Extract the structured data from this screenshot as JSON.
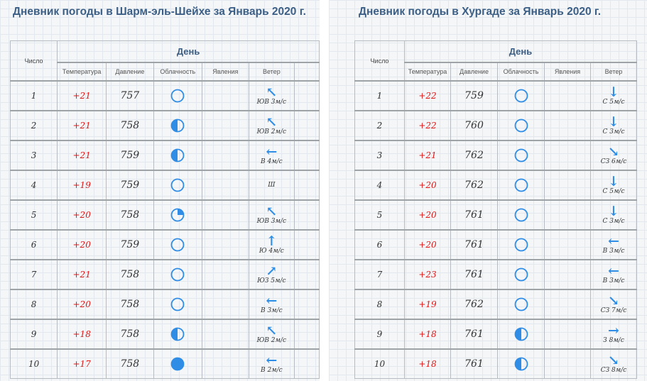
{
  "panels": [
    {
      "title": "Дневник погоды в Шарм-эль-Шейхе за Январь 2020 г.",
      "day_header": "День",
      "headers": {
        "num": "Число",
        "temp": "Температура",
        "press": "Давление",
        "cloud": "Облачность",
        "phen": "Явления",
        "wind": "Ветер"
      },
      "rows": [
        {
          "num": "1",
          "temp": "+21",
          "press": "757",
          "cloud": "clear",
          "cloud_icon": "clear-circle-icon",
          "wind": "ЮВ 3м/с",
          "wind_dir": "nw",
          "wind_icon": "arrow-up-left-icon"
        },
        {
          "num": "2",
          "temp": "+21",
          "press": "758",
          "cloud": "half",
          "cloud_icon": "half-cloud-icon",
          "wind": "ЮВ 2м/с",
          "wind_dir": "nw",
          "wind_icon": "arrow-up-left-icon"
        },
        {
          "num": "3",
          "temp": "+21",
          "press": "759",
          "cloud": "half",
          "cloud_icon": "half-cloud-icon",
          "wind": "В 4м/с",
          "wind_dir": "w",
          "wind_icon": "arrow-left-icon"
        },
        {
          "num": "4",
          "temp": "+19",
          "press": "759",
          "cloud": "clear",
          "cloud_icon": "clear-circle-icon",
          "wind": "Ш",
          "wind_dir": "",
          "wind_icon": ""
        },
        {
          "num": "5",
          "temp": "+20",
          "press": "758",
          "cloud": "quarter",
          "cloud_icon": "quarter-cloud-icon",
          "wind": "ЮВ 3м/с",
          "wind_dir": "nw",
          "wind_icon": "arrow-up-left-icon"
        },
        {
          "num": "6",
          "temp": "+20",
          "press": "759",
          "cloud": "clear",
          "cloud_icon": "clear-circle-icon",
          "wind": "Ю 4м/с",
          "wind_dir": "n",
          "wind_icon": "arrow-up-icon"
        },
        {
          "num": "7",
          "temp": "+21",
          "press": "758",
          "cloud": "clear",
          "cloud_icon": "clear-circle-icon",
          "wind": "ЮЗ 5м/с",
          "wind_dir": "ne",
          "wind_icon": "arrow-up-right-icon"
        },
        {
          "num": "8",
          "temp": "+20",
          "press": "758",
          "cloud": "clear",
          "cloud_icon": "clear-circle-icon",
          "wind": "В 3м/с",
          "wind_dir": "w",
          "wind_icon": "arrow-left-icon"
        },
        {
          "num": "9",
          "temp": "+18",
          "press": "758",
          "cloud": "half",
          "cloud_icon": "half-cloud-icon",
          "wind": "ЮВ 2м/с",
          "wind_dir": "nw",
          "wind_icon": "arrow-up-left-icon"
        },
        {
          "num": "10",
          "temp": "+17",
          "press": "758",
          "cloud": "full",
          "cloud_icon": "overcast-circle-icon",
          "wind": "В 2м/с",
          "wind_dir": "w",
          "wind_icon": "arrow-left-icon"
        }
      ]
    },
    {
      "title": "Дневник погоды в Хургаде за Январь 2020 г.",
      "day_header": "День",
      "headers": {
        "num": "Число",
        "temp": "Температура",
        "press": "Давление",
        "cloud": "Облачность",
        "phen": "Явления",
        "wind": "Ветер"
      },
      "rows": [
        {
          "num": "1",
          "temp": "+22",
          "press": "759",
          "cloud": "clear",
          "cloud_icon": "clear-circle-icon",
          "wind": "С 5м/с",
          "wind_dir": "s",
          "wind_icon": "arrow-down-icon"
        },
        {
          "num": "2",
          "temp": "+22",
          "press": "760",
          "cloud": "clear",
          "cloud_icon": "clear-circle-icon",
          "wind": "С 3м/с",
          "wind_dir": "s",
          "wind_icon": "arrow-down-icon"
        },
        {
          "num": "3",
          "temp": "+21",
          "press": "762",
          "cloud": "clear",
          "cloud_icon": "clear-circle-icon",
          "wind": "СЗ 6м/с",
          "wind_dir": "se",
          "wind_icon": "arrow-down-right-icon"
        },
        {
          "num": "4",
          "temp": "+20",
          "press": "762",
          "cloud": "clear",
          "cloud_icon": "clear-circle-icon",
          "wind": "С 5м/с",
          "wind_dir": "s",
          "wind_icon": "arrow-down-icon"
        },
        {
          "num": "5",
          "temp": "+20",
          "press": "761",
          "cloud": "clear",
          "cloud_icon": "clear-circle-icon",
          "wind": "С 3м/с",
          "wind_dir": "s",
          "wind_icon": "arrow-down-icon"
        },
        {
          "num": "6",
          "temp": "+20",
          "press": "761",
          "cloud": "clear",
          "cloud_icon": "clear-circle-icon",
          "wind": "В 3м/с",
          "wind_dir": "w",
          "wind_icon": "arrow-left-icon"
        },
        {
          "num": "7",
          "temp": "+23",
          "press": "761",
          "cloud": "clear",
          "cloud_icon": "clear-circle-icon",
          "wind": "В 3м/с",
          "wind_dir": "w",
          "wind_icon": "arrow-left-icon"
        },
        {
          "num": "8",
          "temp": "+19",
          "press": "762",
          "cloud": "clear",
          "cloud_icon": "clear-circle-icon",
          "wind": "СЗ 7м/с",
          "wind_dir": "se",
          "wind_icon": "arrow-down-right-icon"
        },
        {
          "num": "9",
          "temp": "+18",
          "press": "761",
          "cloud": "half",
          "cloud_icon": "half-cloud-icon",
          "wind": "З 8м/с",
          "wind_dir": "e",
          "wind_icon": "arrow-right-icon"
        },
        {
          "num": "10",
          "temp": "+18",
          "press": "761",
          "cloud": "half",
          "cloud_icon": "half-cloud-icon",
          "wind": "СЗ 8м/с",
          "wind_dir": "se",
          "wind_icon": "arrow-down-right-icon"
        }
      ]
    }
  ],
  "colors": {
    "title": "#3c5f86",
    "temperature": "#e01818",
    "icon": "#2f8de6",
    "grid": "#e3e8ee"
  }
}
